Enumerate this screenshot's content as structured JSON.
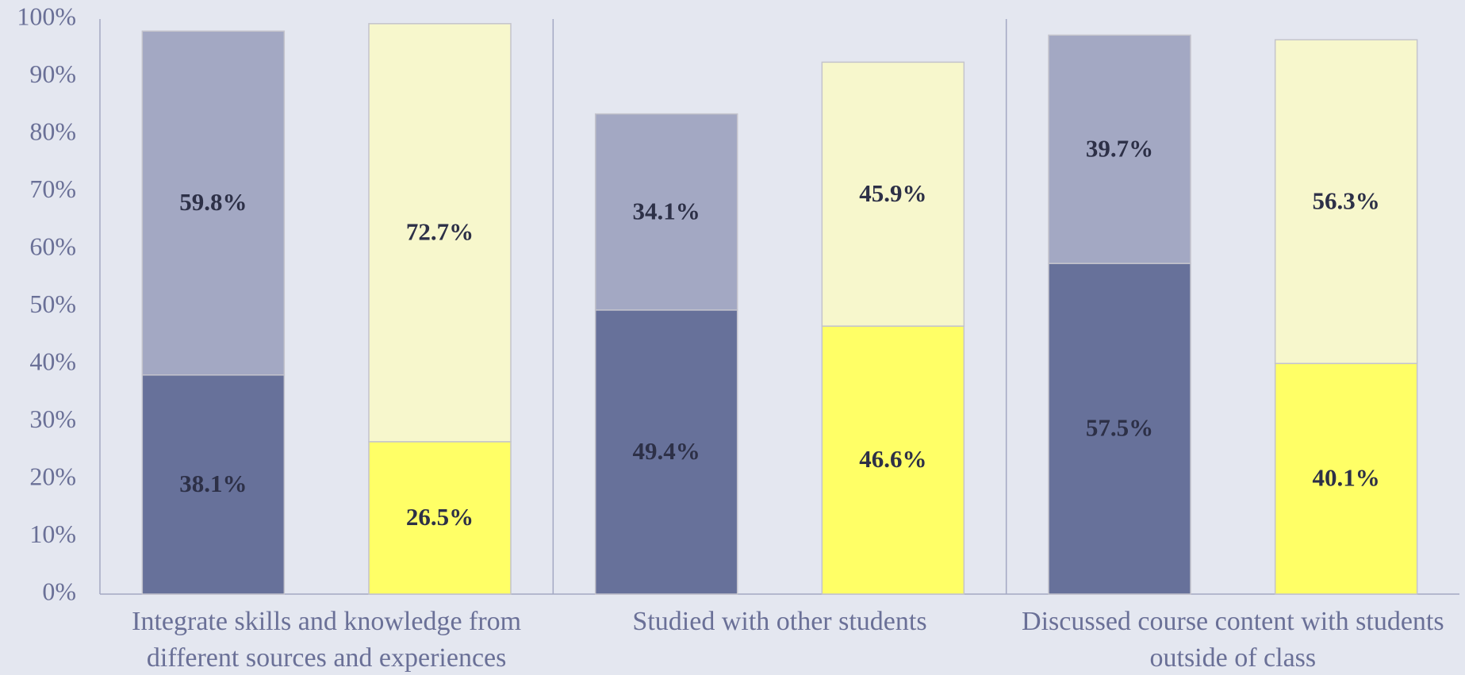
{
  "chart_data": {
    "type": "stacked_bar",
    "categories": [
      "Integrate skills and knowledge from different sources and experiences",
      "Studied with other students",
      "Discussed course content with students outside of class"
    ],
    "series": [
      {
        "color": "#67719a",
        "stack": 0,
        "values": [
          38.1,
          49.4,
          57.5
        ],
        "value_labels": [
          "38.1%",
          "49.4%",
          "57.5%"
        ]
      },
      {
        "color": "#a3a8c3",
        "stack": 0,
        "values": [
          59.8,
          34.1,
          39.7
        ],
        "value_labels": [
          "59.8%",
          "34.1%",
          "39.7%"
        ]
      },
      {
        "color": "#ffff66",
        "stack": 1,
        "values": [
          26.5,
          46.6,
          40.1
        ],
        "value_labels": [
          "26.5%",
          "46.6%",
          "40.1%"
        ]
      },
      {
        "color": "#f7f7cc",
        "stack": 1,
        "values": [
          72.7,
          45.9,
          56.3
        ],
        "value_labels": [
          "72.7%",
          "45.9%",
          "56.3%"
        ]
      }
    ],
    "ylim": [
      0,
      100
    ],
    "yticks": [
      {
        "value": 0,
        "label": "0%"
      },
      {
        "value": 10,
        "label": "10%"
      },
      {
        "value": 20,
        "label": "20%"
      },
      {
        "value": 30,
        "label": "30%"
      },
      {
        "value": 40,
        "label": "40%"
      },
      {
        "value": 50,
        "label": "50%"
      },
      {
        "value": 60,
        "label": "60%"
      },
      {
        "value": 70,
        "label": "70%"
      },
      {
        "value": 80,
        "label": "80%"
      },
      {
        "value": 90,
        "label": "90%"
      },
      {
        "value": 100,
        "label": "100%"
      }
    ],
    "grid": false
  }
}
